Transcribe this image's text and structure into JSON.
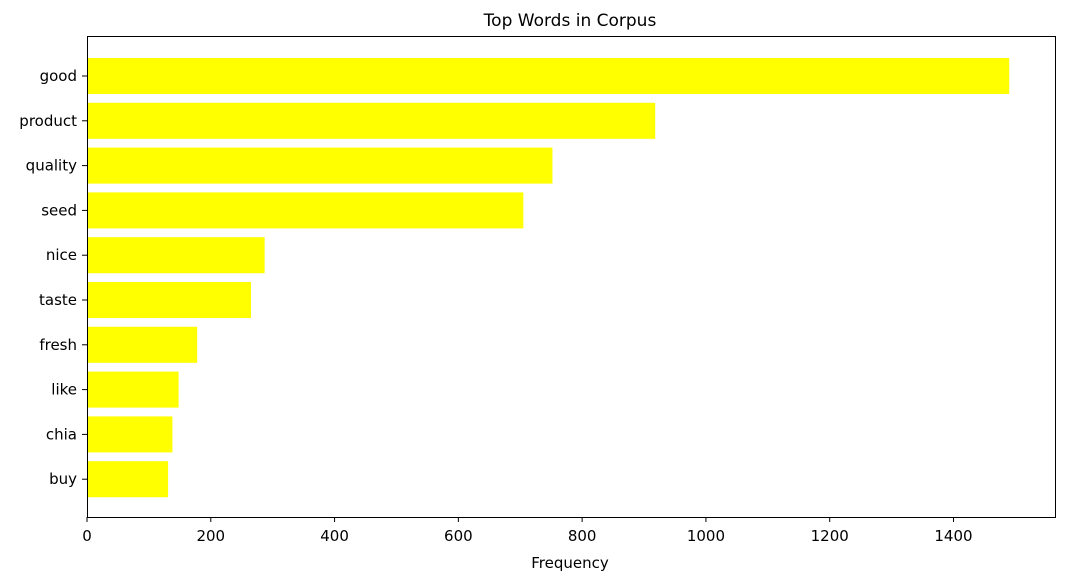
{
  "chart_data": {
    "type": "bar",
    "orientation": "horizontal",
    "title": "Top Words in Corpus",
    "xlabel": "Frequency",
    "ylabel": "",
    "categories": [
      "good",
      "product",
      "quality",
      "seed",
      "nice",
      "taste",
      "fresh",
      "like",
      "chia",
      "buy"
    ],
    "values": [
      1490,
      918,
      752,
      705,
      287,
      265,
      178,
      148,
      138,
      131
    ],
    "xlim": [
      0,
      1564
    ],
    "xticks": [
      0,
      200,
      400,
      600,
      800,
      1000,
      1200,
      1400
    ],
    "bar_color": "#ffff00",
    "grid": false
  }
}
